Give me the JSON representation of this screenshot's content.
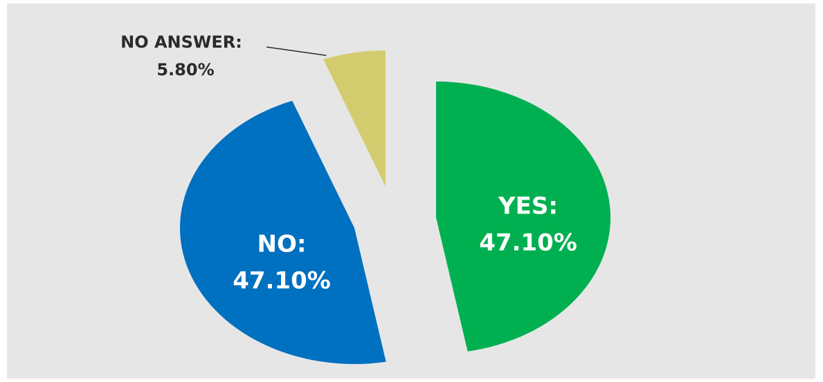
{
  "chart_data": {
    "type": "pie",
    "categories": [
      "YES:",
      "NO:",
      "NO ANSWER:"
    ],
    "values": [
      47.1,
      47.1,
      5.8
    ],
    "value_labels": [
      "47.10%",
      "47.10%",
      "5.80%"
    ],
    "colors": [
      "#00b050",
      "#0070c0",
      "#d3cc6e"
    ]
  }
}
